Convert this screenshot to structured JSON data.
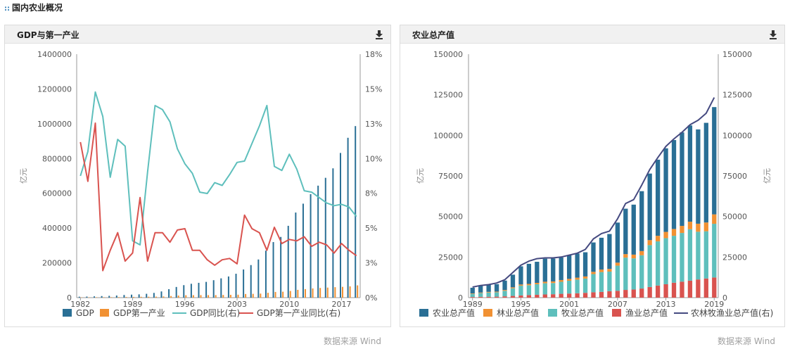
{
  "page": {
    "section_title": "国内农业概况",
    "source_left": "数据来源 Wind",
    "source_right": "数据来源 Wind"
  },
  "colors": {
    "gdp": "#2a6f95",
    "primary": "#f19133",
    "gdp_yoy": "#5ebfbc",
    "primary_yoy": "#d9534f",
    "farm": "#2a6f95",
    "forest": "#f19133",
    "animal": "#5ebfbc",
    "fish": "#d9534f",
    "total": "#454a80"
  },
  "chart_data": [
    {
      "type": "bar",
      "title": "GDP与第一产业",
      "ylabel": "亿元",
      "ylim": [
        0,
        1400000
      ],
      "y2lim": [
        0,
        18
      ],
      "y_ticks": [
        "1400000",
        "1200000",
        "1000000",
        "800000",
        "600000",
        "400000",
        "200000",
        "0"
      ],
      "y2_ticks": [
        "18%",
        "15%",
        "13%",
        "10%",
        "8%",
        "5%",
        "3%",
        "0%"
      ],
      "x_ticks": [
        "1982",
        "1989",
        "1996",
        "2003",
        "2010",
        "2017"
      ],
      "years": [
        1982,
        1983,
        1984,
        1985,
        1986,
        1987,
        1988,
        1989,
        1990,
        1991,
        1992,
        1993,
        1994,
        1995,
        1996,
        1997,
        1998,
        1999,
        2000,
        2001,
        2002,
        2003,
        2004,
        2005,
        2006,
        2007,
        2008,
        2009,
        2010,
        2011,
        2012,
        2013,
        2014,
        2015,
        2016,
        2017,
        2018,
        2019
      ],
      "series": [
        {
          "name": "GDP",
          "kind": "bar",
          "axis": "left",
          "values": [
            5373,
            6021,
            7279,
            9099,
            10376,
            12175,
            15180,
            17180,
            18873,
            22006,
            27195,
            35673,
            48638,
            61340,
            71814,
            79715,
            85196,
            90564,
            100280,
            110863,
            121717,
            137422,
            161840,
            187319,
            219439,
            270232,
            319516,
            349081,
            413030,
            489301,
            540367,
            595244,
            643974,
            689052,
            743586,
            832036,
            919281,
            986515
          ]
        },
        {
          "name": "GDP第一产业",
          "kind": "bar",
          "axis": "left",
          "values": [
            1761,
            1960,
            2295,
            2541,
            2764,
            3204,
            3831,
            4228,
            5017,
            5289,
            5800,
            6887,
            9471,
            12020,
            13878,
            14265,
            14618,
            14548,
            14717,
            15502,
            16190,
            16970,
            20904,
            21806,
            23317,
            27788,
            32753,
            34161,
            38430,
            44781,
            49085,
            53028,
            55626,
            57774,
            60139,
            62100,
            64745,
            70467
          ]
        },
        {
          "name": "GDP同比(右)",
          "kind": "line",
          "axis": "right",
          "values": [
            9.0,
            10.8,
            15.2,
            13.4,
            8.9,
            11.7,
            11.2,
            4.2,
            3.9,
            9.3,
            14.2,
            13.9,
            13.0,
            11.0,
            9.9,
            9.2,
            7.8,
            7.7,
            8.5,
            8.3,
            9.1,
            10.0,
            10.1,
            11.4,
            12.7,
            14.2,
            9.7,
            9.4,
            10.6,
            9.5,
            7.9,
            7.8,
            7.4,
            7.0,
            6.8,
            6.9,
            6.7,
            6.0
          ]
        },
        {
          "name": "GDP第一产业同比(右)",
          "kind": "line",
          "axis": "right",
          "values": [
            11.5,
            8.6,
            12.9,
            2.0,
            3.5,
            4.8,
            2.7,
            3.3,
            7.4,
            2.7,
            4.8,
            4.8,
            4.1,
            5.0,
            5.1,
            3.5,
            3.5,
            2.8,
            2.4,
            2.8,
            2.9,
            2.5,
            6.1,
            5.1,
            4.8,
            3.5,
            5.2,
            4.0,
            4.3,
            4.2,
            4.5,
            3.8,
            4.1,
            3.9,
            3.3,
            4.0,
            3.5,
            3.1
          ]
        }
      ]
    },
    {
      "type": "bar",
      "title": "农业总产值",
      "ylabel": "亿元",
      "ylim": [
        0,
        150000
      ],
      "y2lim": [
        0,
        150000
      ],
      "y_ticks": [
        "150000",
        "125000",
        "100000",
        "75000",
        "50000",
        "25000",
        "0"
      ],
      "y2_ticks": [
        "150000",
        "125000",
        "100000",
        "75000",
        "50000",
        "25000",
        "0"
      ],
      "x_ticks": [
        "1989",
        "1995",
        "2001",
        "2007",
        "2013",
        "2019"
      ],
      "years": [
        1989,
        1990,
        1991,
        1992,
        1993,
        1994,
        1995,
        1996,
        1997,
        1998,
        1999,
        2000,
        2001,
        2002,
        2003,
        2004,
        2005,
        2006,
        2007,
        2008,
        2009,
        2010,
        2011,
        2012,
        2013,
        2014,
        2015,
        2016,
        2017,
        2018,
        2019
      ],
      "stack_order": [
        "渔业总产值",
        "牧业总产值",
        "林业总产值",
        "农业总产值"
      ],
      "series": [
        {
          "name": "农业总产值",
          "kind": "bar",
          "values": [
            3500,
            4100,
            4300,
            4600,
            5800,
            7800,
            11200,
            12400,
            13000,
            14200,
            14100,
            13900,
            14500,
            14900,
            14900,
            18100,
            19600,
            21500,
            24700,
            28000,
            30800,
            36900,
            41000,
            46900,
            51500,
            54800,
            57600,
            59300,
            58100,
            61400,
            66100
          ]
        },
        {
          "name": "林业总产值",
          "kind": "bar",
          "values": [
            300,
            350,
            400,
            420,
            500,
            600,
            750,
            800,
            850,
            950,
            1000,
            1100,
            1150,
            1200,
            1300,
            1400,
            1550,
            1650,
            1850,
            2150,
            2300,
            2600,
            3100,
            3450,
            3850,
            4200,
            4350,
            4650,
            4950,
            5400,
            5800
          ]
        },
        {
          "name": "牧业总产值",
          "kind": "bar",
          "values": [
            1900,
            2300,
            2600,
            2700,
            3400,
            4700,
            6000,
            6100,
            6500,
            6900,
            6900,
            7400,
            7900,
            8400,
            8800,
            11200,
            12200,
            12100,
            15500,
            19900,
            19200,
            20500,
            25800,
            27200,
            28400,
            28900,
            30000,
            31700,
            29400,
            29100,
            33100
          ]
        },
        {
          "name": "渔业总产值",
          "kind": "bar",
          "values": [
            400,
            500,
            550,
            600,
            800,
            1050,
            1350,
            1550,
            1750,
            1950,
            2100,
            2350,
            2500,
            2700,
            2950,
            3300,
            3550,
            3950,
            4200,
            4750,
            5000,
            5600,
            6550,
            7450,
            8250,
            9200,
            9850,
            10450,
            11200,
            11800,
            12400
          ]
        },
        {
          "name": "农林牧渔业总产值(右)",
          "kind": "line",
          "values": [
            6500,
            7500,
            8000,
            9000,
            11000,
            15500,
            20000,
            22500,
            24000,
            24500,
            24500,
            25000,
            26200,
            27400,
            29700,
            36200,
            39500,
            41000,
            48600,
            58000,
            60400,
            69300,
            79000,
            86300,
            93200,
            97800,
            101900,
            106500,
            109300,
            113600,
            123300
          ]
        }
      ]
    }
  ]
}
